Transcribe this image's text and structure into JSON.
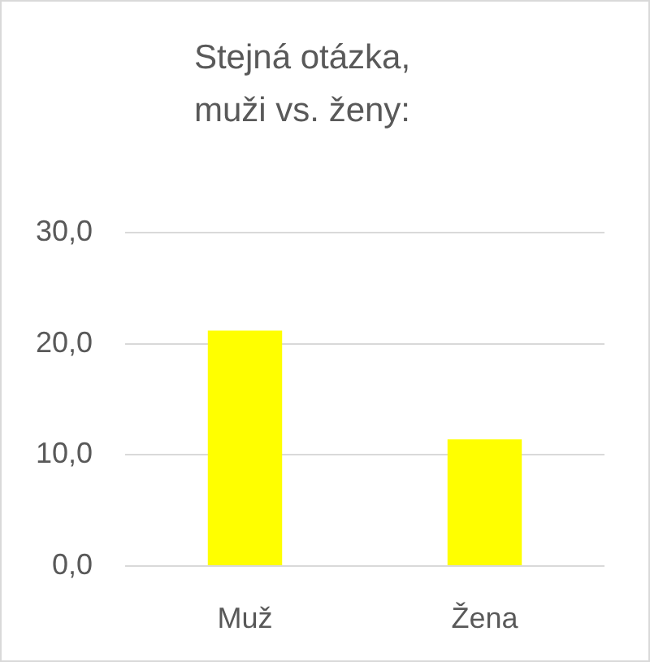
{
  "chart_data": {
    "type": "bar",
    "title": "Stejná otázka, muži vs. ženy:",
    "categories": [
      "Muž",
      "Žena"
    ],
    "values": [
      21.2,
      11.4
    ],
    "color": "#ffff00",
    "ylim": [
      0,
      30
    ],
    "yticks": [
      {
        "value": 0,
        "label": "0,0"
      },
      {
        "value": 10,
        "label": "10,0"
      },
      {
        "value": 20,
        "label": "20,0"
      },
      {
        "value": 30,
        "label": "30,0"
      }
    ],
    "grid": "y"
  }
}
